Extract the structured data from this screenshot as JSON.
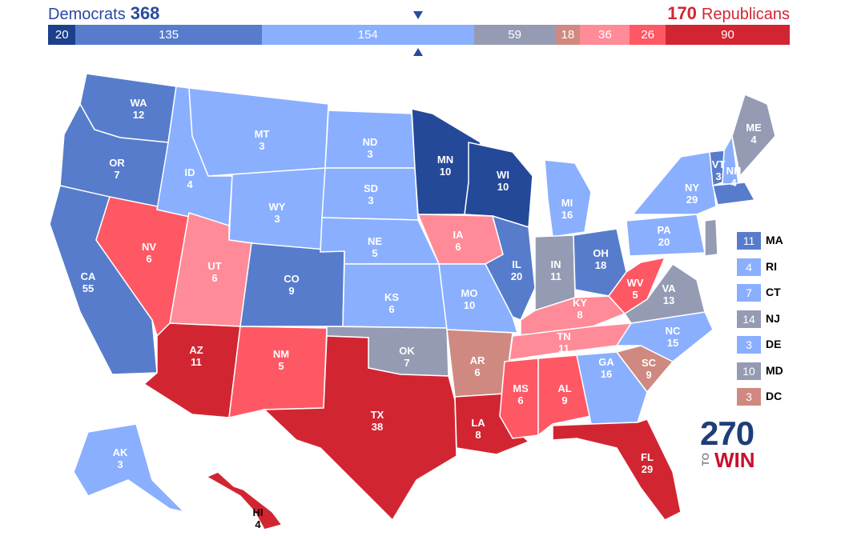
{
  "header": {
    "dem_name": "Democrats",
    "dem_total": "368",
    "rep_total": "170",
    "rep_name": "Republicans"
  },
  "tally_segments": [
    {
      "value": "20",
      "color": "#1c408c",
      "width": 20
    },
    {
      "value": "135",
      "color": "#577ccc",
      "width": 135
    },
    {
      "value": "154",
      "color": "#8aafff",
      "width": 154
    },
    {
      "value": "59",
      "color": "#949bb3",
      "width": 59
    },
    {
      "value": "18",
      "color": "#cf8980",
      "width": 18
    },
    {
      "value": "36",
      "color": "#ff8b98",
      "width": 36
    },
    {
      "value": "26",
      "color": "#ff5865",
      "width": 26
    },
    {
      "value": "90",
      "color": "#d22532",
      "width": 90
    }
  ],
  "colors": {
    "safe_dem": "#244999",
    "likely_dem": "#577ccc",
    "lean_dem": "#8aafff",
    "tossup": "#949bb3",
    "tilt_rep": "#cf8980",
    "lean_rep": "#ff8b98",
    "likely_rep": "#ff5865",
    "safe_rep": "#d22532"
  },
  "states": {
    "WA": {
      "abbr": "WA",
      "ev": "12"
    },
    "OR": {
      "abbr": "OR",
      "ev": "7"
    },
    "CA": {
      "abbr": "CA",
      "ev": "55"
    },
    "NV": {
      "abbr": "NV",
      "ev": "6"
    },
    "ID": {
      "abbr": "ID",
      "ev": "4"
    },
    "MT": {
      "abbr": "MT",
      "ev": "3"
    },
    "WY": {
      "abbr": "WY",
      "ev": "3"
    },
    "UT": {
      "abbr": "UT",
      "ev": "6"
    },
    "CO": {
      "abbr": "CO",
      "ev": "9"
    },
    "AZ": {
      "abbr": "AZ",
      "ev": "11"
    },
    "NM": {
      "abbr": "NM",
      "ev": "5"
    },
    "ND": {
      "abbr": "ND",
      "ev": "3"
    },
    "SD": {
      "abbr": "SD",
      "ev": "3"
    },
    "NE": {
      "abbr": "NE",
      "ev": "5"
    },
    "KS": {
      "abbr": "KS",
      "ev": "6"
    },
    "OK": {
      "abbr": "OK",
      "ev": "7"
    },
    "TX": {
      "abbr": "TX",
      "ev": "38"
    },
    "MN": {
      "abbr": "MN",
      "ev": "10"
    },
    "IA": {
      "abbr": "IA",
      "ev": "6"
    },
    "MO": {
      "abbr": "MO",
      "ev": "10"
    },
    "AR": {
      "abbr": "AR",
      "ev": "6"
    },
    "LA": {
      "abbr": "LA",
      "ev": "8"
    },
    "WI": {
      "abbr": "WI",
      "ev": "10"
    },
    "IL": {
      "abbr": "IL",
      "ev": "20"
    },
    "MI": {
      "abbr": "MI",
      "ev": "16"
    },
    "IN": {
      "abbr": "IN",
      "ev": "11"
    },
    "OH": {
      "abbr": "OH",
      "ev": "18"
    },
    "KY": {
      "abbr": "KY",
      "ev": "8"
    },
    "TN": {
      "abbr": "TN",
      "ev": "11"
    },
    "MS": {
      "abbr": "MS",
      "ev": "6"
    },
    "AL": {
      "abbr": "AL",
      "ev": "9"
    },
    "GA": {
      "abbr": "GA",
      "ev": "16"
    },
    "FL": {
      "abbr": "FL",
      "ev": "29"
    },
    "SC": {
      "abbr": "SC",
      "ev": "9"
    },
    "NC": {
      "abbr": "NC",
      "ev": "15"
    },
    "VA": {
      "abbr": "VA",
      "ev": "13"
    },
    "WV": {
      "abbr": "WV",
      "ev": "5"
    },
    "PA": {
      "abbr": "PA",
      "ev": "20"
    },
    "NY": {
      "abbr": "NY",
      "ev": "29"
    },
    "VT": {
      "abbr": "VT",
      "ev": "3"
    },
    "NH": {
      "abbr": "NH",
      "ev": "4"
    },
    "ME": {
      "abbr": "ME",
      "ev": "4"
    },
    "AK": {
      "abbr": "AK",
      "ev": "3"
    },
    "HI": {
      "abbr": "HI",
      "ev": "4"
    }
  },
  "legend": [
    {
      "ev": "11",
      "name": "MA",
      "color": "#577ccc"
    },
    {
      "ev": "4",
      "name": "RI",
      "color": "#8aafff"
    },
    {
      "ev": "7",
      "name": "CT",
      "color": "#8aafff"
    },
    {
      "ev": "14",
      "name": "NJ",
      "color": "#949bb3"
    },
    {
      "ev": "3",
      "name": "DE",
      "color": "#8aafff"
    },
    {
      "ev": "10",
      "name": "MD",
      "color": "#949bb3"
    },
    {
      "ev": "3",
      "name": "DC",
      "color": "#cf8980"
    }
  ],
  "logo": {
    "number": "270",
    "to": "TO",
    "win": "WIN"
  }
}
